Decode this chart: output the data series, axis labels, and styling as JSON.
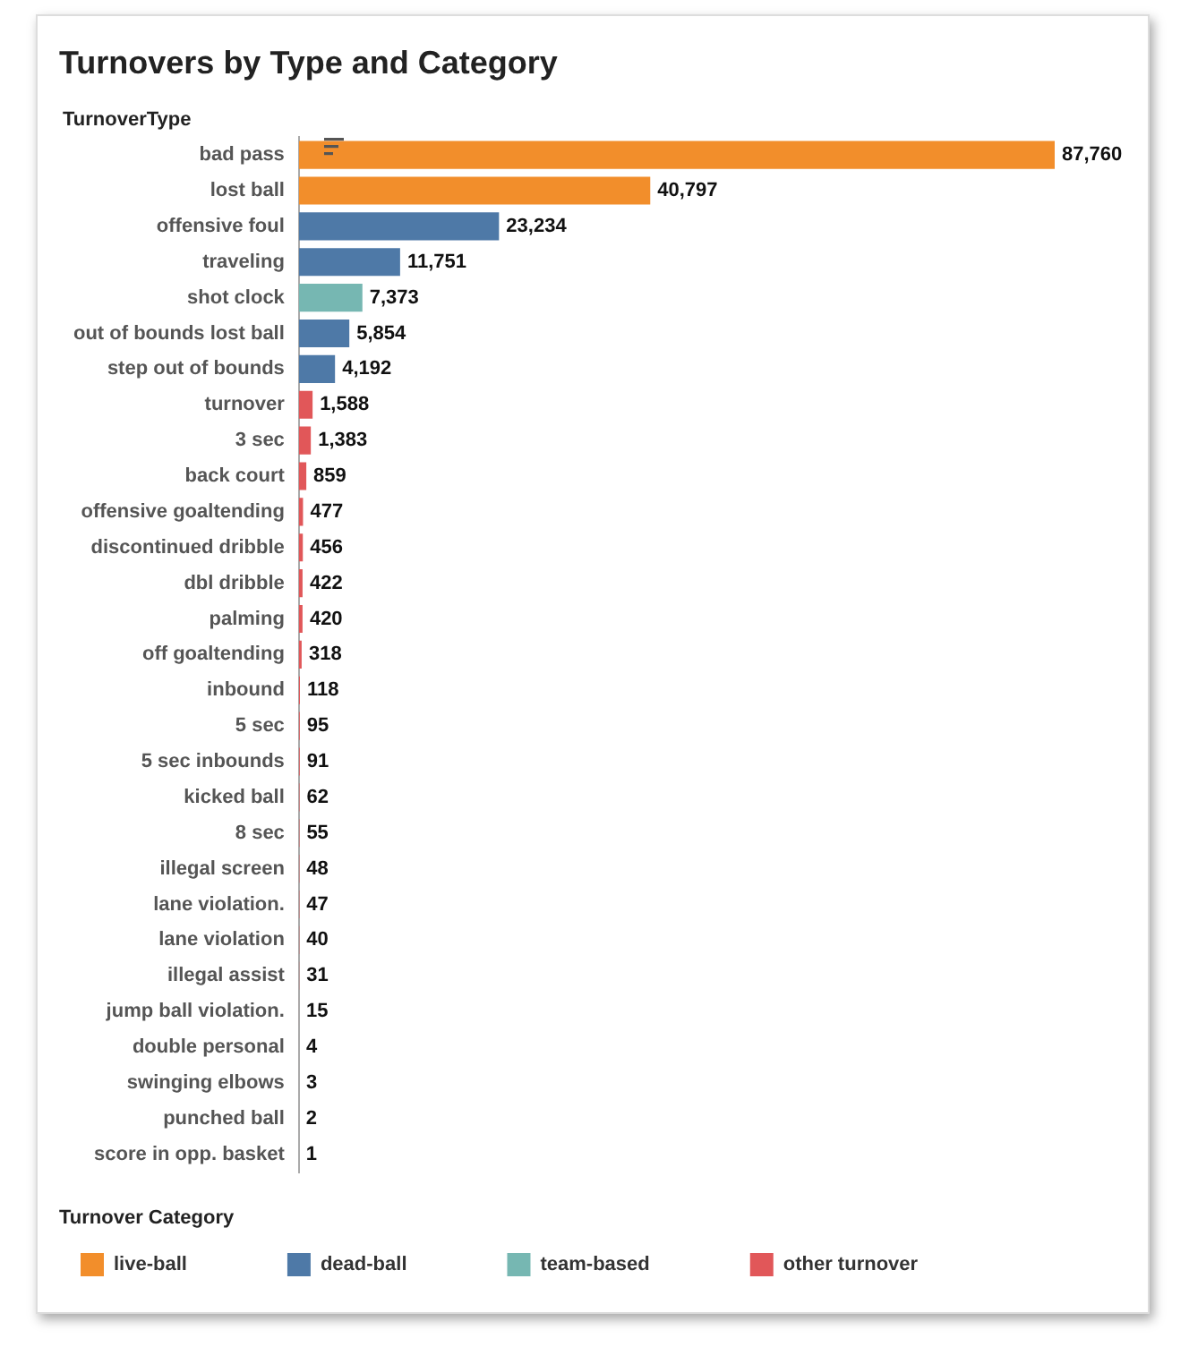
{
  "chart_data": {
    "type": "bar",
    "orientation": "horizontal",
    "title": "Turnovers by Type and Category",
    "ylabel": "TurnoverType",
    "legend_title": "Turnover Category",
    "legend": "bottom left",
    "grid": false,
    "tick_labels": "y",
    "categories": [
      "bad pass",
      "lost ball",
      "offensive foul",
      "traveling",
      "shot clock",
      "out of bounds lost ball",
      "step out of bounds",
      "turnover",
      "3 sec",
      "back court",
      "offensive goaltending",
      "discontinued dribble",
      "dbl dribble",
      "palming",
      "off goaltending",
      "inbound",
      "5 sec",
      "5 sec inbounds",
      "kicked ball",
      "8 sec",
      "illegal screen",
      "lane violation.",
      "lane violation",
      "illegal assist",
      "jump ball violation.",
      "double personal",
      "swinging elbows",
      "punched ball",
      "score in opp. basket"
    ],
    "series": [
      {
        "name": "live-ball",
        "color": "#f28e2b",
        "values": [
          87760,
          40797,
          null,
          null,
          null,
          null,
          null,
          null,
          null,
          null,
          null,
          null,
          null,
          null,
          null,
          null,
          null,
          null,
          null,
          null,
          null,
          null,
          null,
          null,
          null,
          null,
          null,
          null,
          null
        ],
        "value_labels": [
          "87,760",
          "40,797",
          null,
          null,
          null,
          null,
          null,
          null,
          null,
          null,
          null,
          null,
          null,
          null,
          null,
          null,
          null,
          null,
          null,
          null,
          null,
          null,
          null,
          null,
          null,
          null,
          null,
          null,
          null
        ]
      },
      {
        "name": "dead-ball",
        "color": "#4e79a7",
        "values": [
          null,
          null,
          23234,
          11751,
          null,
          5854,
          4192,
          null,
          null,
          null,
          null,
          null,
          null,
          null,
          null,
          null,
          null,
          null,
          null,
          null,
          null,
          null,
          null,
          null,
          null,
          null,
          null,
          null,
          null
        ],
        "value_labels": [
          null,
          null,
          "23,234",
          "11,751",
          null,
          "5,854",
          "4,192",
          null,
          null,
          null,
          null,
          null,
          null,
          null,
          null,
          null,
          null,
          null,
          null,
          null,
          null,
          null,
          null,
          null,
          null,
          null,
          null,
          null,
          null
        ]
      },
      {
        "name": "team-based",
        "color": "#76b7b2",
        "values": [
          null,
          null,
          null,
          null,
          7373,
          null,
          null,
          null,
          null,
          null,
          null,
          null,
          null,
          null,
          null,
          null,
          null,
          null,
          null,
          null,
          null,
          null,
          null,
          null,
          null,
          null,
          null,
          null,
          null
        ],
        "value_labels": [
          null,
          null,
          null,
          null,
          "7,373",
          null,
          null,
          null,
          null,
          null,
          null,
          null,
          null,
          null,
          null,
          null,
          null,
          null,
          null,
          null,
          null,
          null,
          null,
          null,
          null,
          null,
          null,
          null,
          null
        ]
      },
      {
        "name": "other turnover",
        "color": "#e15759",
        "values": [
          null,
          null,
          null,
          null,
          null,
          null,
          null,
          1588,
          1383,
          859,
          477,
          456,
          422,
          420,
          318,
          118,
          95,
          91,
          62,
          55,
          48,
          47,
          40,
          31,
          15,
          4,
          3,
          2,
          1
        ],
        "value_labels": [
          null,
          null,
          null,
          null,
          null,
          null,
          null,
          "1,588",
          "1,383",
          "859",
          "477",
          "456",
          "422",
          "420",
          "318",
          "118",
          "95",
          "91",
          "62",
          "55",
          "48",
          "47",
          "40",
          "31",
          "15",
          "4",
          "3",
          "2",
          "1"
        ]
      }
    ]
  }
}
